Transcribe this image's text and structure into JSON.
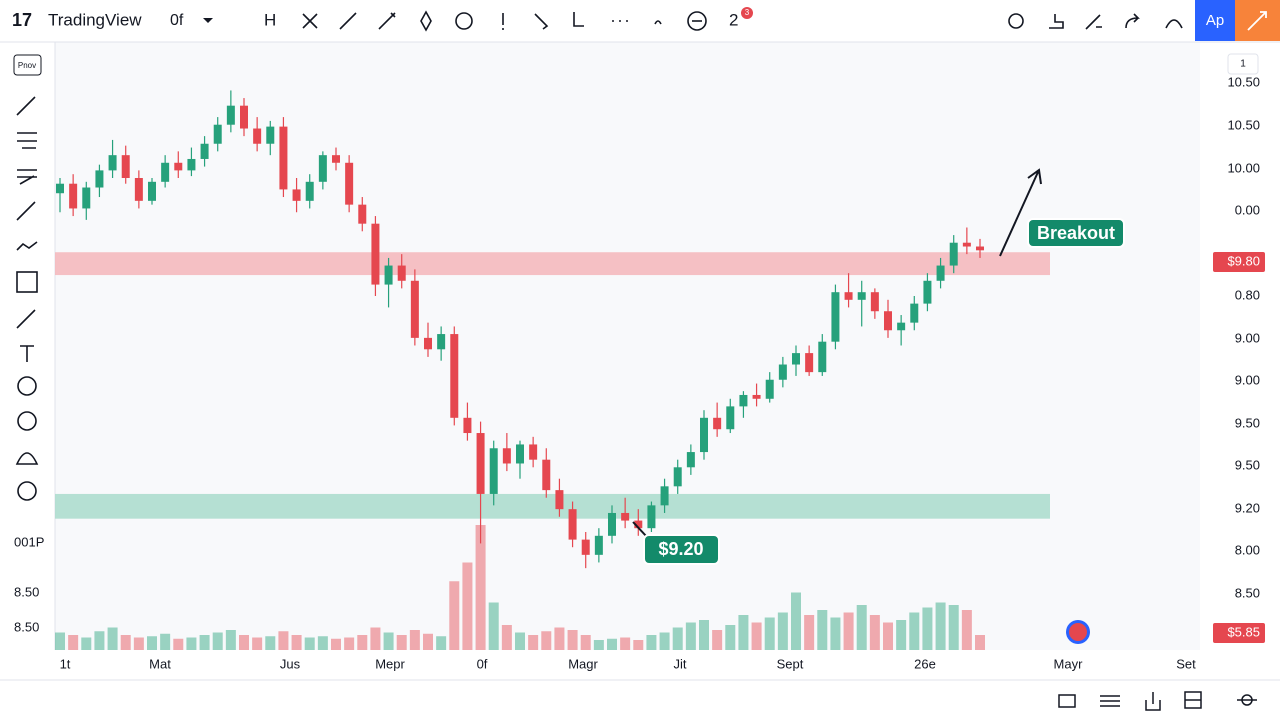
{
  "app": {
    "brand": "TradingView",
    "symbol": "0f",
    "toolbar": [
      "H",
      "2"
    ],
    "badge": "3",
    "axis_button": "1",
    "left_labels": [
      "Pnov",
      "001P",
      "8.50",
      "8.50"
    ]
  },
  "chart_data": {
    "type": "candlestick",
    "ylim": [
      7.5,
      10.6
    ],
    "price_labels": [
      "10.50",
      "10.50",
      "10.00",
      "0.00",
      "$9.80",
      "0.80",
      "9.00",
      "9.00",
      "9.50",
      "9.50",
      "9.20",
      "8.00",
      "8.50",
      "$5.85"
    ],
    "x_labels": [
      "1t",
      "Mat",
      "Jus",
      "Mepr",
      "0f",
      "Magr",
      "Jit",
      "Sept",
      "26e",
      "Mayr",
      "Set"
    ],
    "up_color": "#26a17b",
    "down_color": "#e5474f",
    "candles": [
      [
        9.9,
        9.98,
        9.8,
        9.95
      ],
      [
        9.95,
        10.0,
        9.78,
        9.82
      ],
      [
        9.82,
        9.96,
        9.76,
        9.93
      ],
      [
        9.93,
        10.05,
        9.88,
        10.02
      ],
      [
        10.02,
        10.18,
        9.98,
        10.1
      ],
      [
        10.1,
        10.15,
        9.95,
        9.98
      ],
      [
        9.98,
        10.02,
        9.82,
        9.86
      ],
      [
        9.86,
        9.98,
        9.84,
        9.96
      ],
      [
        9.96,
        10.1,
        9.93,
        10.06
      ],
      [
        10.06,
        10.12,
        9.98,
        10.02
      ],
      [
        10.02,
        10.14,
        9.99,
        10.08
      ],
      [
        10.08,
        10.2,
        10.04,
        10.16
      ],
      [
        10.16,
        10.3,
        10.12,
        10.26
      ],
      [
        10.26,
        10.44,
        10.22,
        10.36
      ],
      [
        10.36,
        10.4,
        10.2,
        10.24
      ],
      [
        10.24,
        10.3,
        10.12,
        10.16
      ],
      [
        10.16,
        10.28,
        10.1,
        10.25
      ],
      [
        10.25,
        10.3,
        9.88,
        9.92
      ],
      [
        9.92,
        9.98,
        9.8,
        9.86
      ],
      [
        9.86,
        10.0,
        9.82,
        9.96
      ],
      [
        9.96,
        10.12,
        9.92,
        10.1
      ],
      [
        10.1,
        10.14,
        10.02,
        10.06
      ],
      [
        10.06,
        10.1,
        9.8,
        9.84
      ],
      [
        9.84,
        9.88,
        9.7,
        9.74
      ],
      [
        9.74,
        9.78,
        9.36,
        9.42
      ],
      [
        9.42,
        9.56,
        9.3,
        9.52
      ],
      [
        9.52,
        9.58,
        9.4,
        9.44
      ],
      [
        9.44,
        9.5,
        9.1,
        9.14
      ],
      [
        9.14,
        9.22,
        9.04,
        9.08
      ],
      [
        9.08,
        9.2,
        9.02,
        9.16
      ],
      [
        9.16,
        9.2,
        8.68,
        8.72
      ],
      [
        8.72,
        8.8,
        8.6,
        8.64
      ],
      [
        8.64,
        8.7,
        8.06,
        8.32
      ],
      [
        8.32,
        8.6,
        8.26,
        8.56
      ],
      [
        8.56,
        8.64,
        8.44,
        8.48
      ],
      [
        8.48,
        8.6,
        8.4,
        8.58
      ],
      [
        8.58,
        8.62,
        8.46,
        8.5
      ],
      [
        8.5,
        8.56,
        8.3,
        8.34
      ],
      [
        8.34,
        8.4,
        8.2,
        8.24
      ],
      [
        8.24,
        8.28,
        8.04,
        8.08
      ],
      [
        8.08,
        8.12,
        7.93,
        8.0
      ],
      [
        8.0,
        8.14,
        7.96,
        8.1
      ],
      [
        8.1,
        8.26,
        8.06,
        8.22
      ],
      [
        8.22,
        8.3,
        8.14,
        8.18
      ],
      [
        8.18,
        8.24,
        8.1,
        8.14
      ],
      [
        8.14,
        8.28,
        8.12,
        8.26
      ],
      [
        8.26,
        8.4,
        8.22,
        8.36
      ],
      [
        8.36,
        8.5,
        8.32,
        8.46
      ],
      [
        8.46,
        8.58,
        8.42,
        8.54
      ],
      [
        8.54,
        8.76,
        8.5,
        8.72
      ],
      [
        8.72,
        8.8,
        8.62,
        8.66
      ],
      [
        8.66,
        8.82,
        8.64,
        8.78
      ],
      [
        8.78,
        8.86,
        8.72,
        8.84
      ],
      [
        8.84,
        8.9,
        8.78,
        8.82
      ],
      [
        8.82,
        8.96,
        8.8,
        8.92
      ],
      [
        8.92,
        9.04,
        8.88,
        9.0
      ],
      [
        9.0,
        9.1,
        8.94,
        9.06
      ],
      [
        9.06,
        9.1,
        8.94,
        8.96
      ],
      [
        8.96,
        9.16,
        8.94,
        9.12
      ],
      [
        9.12,
        9.42,
        9.08,
        9.38
      ],
      [
        9.38,
        9.48,
        9.3,
        9.34
      ],
      [
        9.34,
        9.44,
        9.2,
        9.38
      ],
      [
        9.38,
        9.4,
        9.24,
        9.28
      ],
      [
        9.28,
        9.34,
        9.14,
        9.18
      ],
      [
        9.18,
        9.26,
        9.1,
        9.22
      ],
      [
        9.22,
        9.36,
        9.18,
        9.32
      ],
      [
        9.32,
        9.48,
        9.28,
        9.44
      ],
      [
        9.44,
        9.56,
        9.4,
        9.52
      ],
      [
        9.52,
        9.68,
        9.48,
        9.64
      ],
      [
        9.64,
        9.72,
        9.58,
        9.62
      ],
      [
        9.62,
        9.66,
        9.56,
        9.6
      ]
    ],
    "volume_lim": [
      0,
      100
    ],
    "volumes": [
      14,
      12,
      10,
      15,
      18,
      12,
      10,
      11,
      13,
      9,
      10,
      12,
      14,
      16,
      12,
      10,
      11,
      15,
      12,
      10,
      11,
      9,
      10,
      12,
      18,
      14,
      12,
      16,
      13,
      11,
      55,
      70,
      100,
      38,
      20,
      14,
      12,
      15,
      18,
      16,
      12,
      8,
      9,
      10,
      8,
      12,
      14,
      18,
      22,
      24,
      16,
      20,
      28,
      22,
      26,
      30,
      46,
      28,
      32,
      26,
      30,
      36,
      28,
      22,
      24,
      30,
      34,
      38,
      36,
      32,
      12
    ],
    "zones": [
      {
        "color": "#f4b6ba",
        "from": 9.47,
        "to": 9.59
      },
      {
        "color": "#a9dccb",
        "from": 8.19,
        "to": 8.32
      }
    ],
    "annotations": [
      {
        "text": "Breakout"
      },
      {
        "text": "$9.20"
      }
    ]
  }
}
